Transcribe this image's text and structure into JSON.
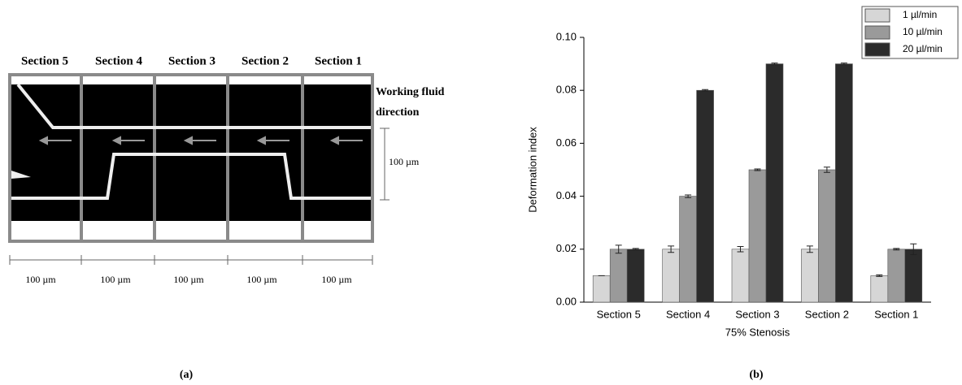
{
  "diagram": {
    "section_labels": [
      "Section 5",
      "Section 4",
      "Section 3",
      "Section 2",
      "Section 1"
    ],
    "fluid_direction": [
      "Working fluid",
      "direction"
    ],
    "channel_width": "100 µm",
    "scale_labels": [
      "100 µm",
      "100 µm",
      "100 µm",
      "100 µm",
      "100 µm"
    ],
    "caption": "(a)"
  },
  "chart_data": {
    "type": "bar",
    "caption": "(b)",
    "x_label": "75% Stenosis",
    "y_label": "Deformation index",
    "categories": [
      "Section 5",
      "Section 4",
      "Section 3",
      "Section 2",
      "Section 1"
    ],
    "series": [
      {
        "name": "1 µl/min",
        "color": "#d6d6d6",
        "values": [
          0.01,
          0.02,
          0.02,
          0.02,
          0.01
        ],
        "errors": [
          0,
          0.0012,
          0.001,
          0.0012,
          0.0003
        ]
      },
      {
        "name": "10 µl/min",
        "color": "#9a9a9a",
        "values": [
          0.02,
          0.04,
          0.05,
          0.05,
          0.02
        ],
        "errors": [
          0.0015,
          0.0005,
          0.0003,
          0.001,
          0.0003
        ]
      },
      {
        "name": "20 µl/min",
        "color": "#2b2b2b",
        "values": [
          0.02,
          0.08,
          0.09,
          0.09,
          0.02
        ],
        "errors": [
          0.0003,
          0.0003,
          0.0003,
          0.0003,
          0.002
        ]
      }
    ],
    "ylim": [
      0,
      0.1
    ],
    "yticks": [
      {
        "value": 0,
        "label": "0.00"
      },
      {
        "value": 0.02,
        "label": "0.02"
      },
      {
        "value": 0.04,
        "label": "0.04"
      },
      {
        "value": 0.06,
        "label": "0.06"
      },
      {
        "value": 0.08,
        "label": "0.08"
      },
      {
        "value": 0.1,
        "label": "0.10"
      }
    ],
    "legend": "upper right"
  }
}
